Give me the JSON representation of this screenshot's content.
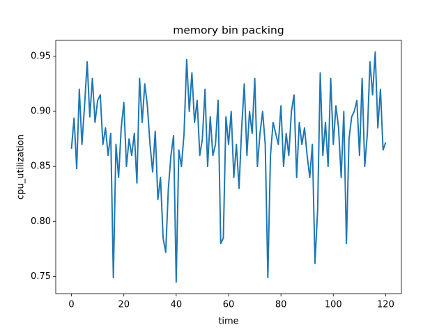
{
  "chart_data": {
    "type": "line",
    "title": "memory bin packing",
    "x_label": "time",
    "y_label": "cpu_utilization",
    "color": "#1f77b4",
    "x": [
      0,
      1,
      2,
      3,
      4,
      5,
      6,
      7,
      8,
      9,
      10,
      11,
      12,
      13,
      14,
      15,
      16,
      17,
      18,
      19,
      20,
      21,
      22,
      23,
      24,
      25,
      26,
      27,
      28,
      29,
      30,
      31,
      32,
      33,
      34,
      35,
      36,
      37,
      38,
      39,
      40,
      41,
      42,
      43,
      44,
      45,
      46,
      47,
      48,
      49,
      50,
      51,
      52,
      53,
      54,
      55,
      56,
      57,
      58,
      59,
      60,
      61,
      62,
      63,
      64,
      65,
      66,
      67,
      68,
      69,
      70,
      71,
      72,
      73,
      74,
      75,
      76,
      77,
      78,
      79,
      80,
      81,
      82,
      83,
      84,
      85,
      86,
      87,
      88,
      89,
      90,
      91,
      92,
      93,
      94,
      95,
      96,
      97,
      98,
      99,
      100,
      101,
      102,
      103,
      104,
      105,
      106,
      107,
      108,
      109,
      110,
      111,
      112,
      113,
      114,
      115,
      116,
      117,
      118,
      119,
      120
    ],
    "values": [
      0.866,
      0.894,
      0.848,
      0.92,
      0.87,
      0.905,
      0.945,
      0.895,
      0.93,
      0.89,
      0.91,
      0.915,
      0.87,
      0.885,
      0.86,
      0.88,
      0.749,
      0.87,
      0.84,
      0.885,
      0.908,
      0.85,
      0.875,
      0.86,
      0.88,
      0.835,
      0.93,
      0.89,
      0.925,
      0.905,
      0.87,
      0.845,
      0.882,
      0.82,
      0.84,
      0.785,
      0.772,
      0.83,
      0.86,
      0.878,
      0.745,
      0.865,
      0.85,
      0.88,
      0.947,
      0.9,
      0.935,
      0.89,
      0.91,
      0.86,
      0.875,
      0.92,
      0.85,
      0.895,
      0.86,
      0.87,
      0.91,
      0.78,
      0.785,
      0.895,
      0.87,
      0.9,
      0.84,
      0.87,
      0.83,
      0.885,
      0.925,
      0.86,
      0.9,
      0.88,
      0.93,
      0.85,
      0.88,
      0.9,
      0.87,
      0.749,
      0.86,
      0.89,
      0.88,
      0.87,
      0.905,
      0.85,
      0.88,
      0.86,
      0.9,
      0.915,
      0.84,
      0.89,
      0.87,
      0.885,
      0.86,
      0.84,
      0.87,
      0.762,
      0.81,
      0.935,
      0.86,
      0.89,
      0.85,
      0.93,
      0.87,
      0.905,
      0.885,
      0.84,
      0.9,
      0.78,
      0.875,
      0.895,
      0.9,
      0.91,
      0.86,
      0.93,
      0.85,
      0.88,
      0.945,
      0.915,
      0.954,
      0.885,
      0.92,
      0.865,
      0.872
    ],
    "xlim": [
      -6,
      126
    ],
    "ylim": [
      0.7345,
      0.9645
    ],
    "xticks": [
      0,
      20,
      40,
      60,
      80,
      100,
      120
    ],
    "yticks": [
      0.75,
      {
        "value": 0.8,
        "label": "0.80"
      },
      0.85,
      {
        "value": 0.9,
        "label": "0.90"
      },
      0.95
    ]
  }
}
